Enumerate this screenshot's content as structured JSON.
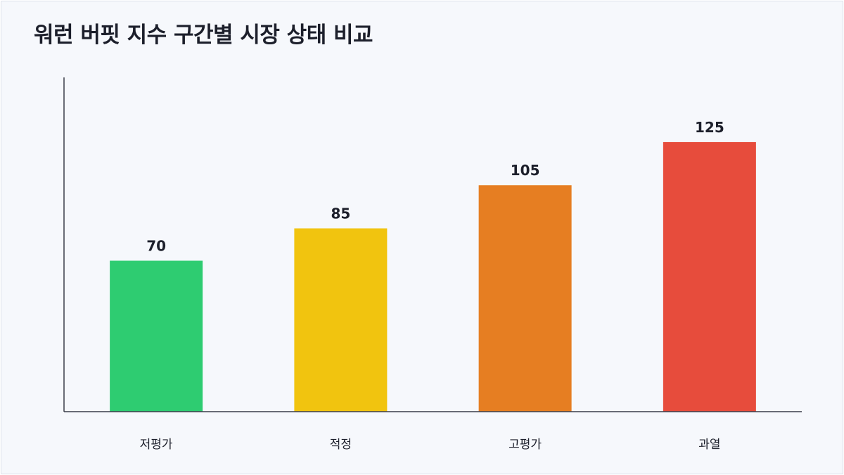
{
  "title": "워런 버핏 지수 구간별 시장 상태 비교",
  "chart_data": {
    "type": "bar",
    "title": "워런 버핏 지수 구간별 시장 상태 비교",
    "xlabel": "",
    "ylabel": "",
    "categories": [
      "저평가",
      "적정",
      "고평가",
      "과열"
    ],
    "values": [
      70,
      85,
      105,
      125
    ],
    "colors": [
      "#2ecc71",
      "#f1c40f",
      "#e67e22",
      "#e74c3c"
    ],
    "ylim": [
      0,
      155
    ],
    "grid": false,
    "legend": "none"
  }
}
